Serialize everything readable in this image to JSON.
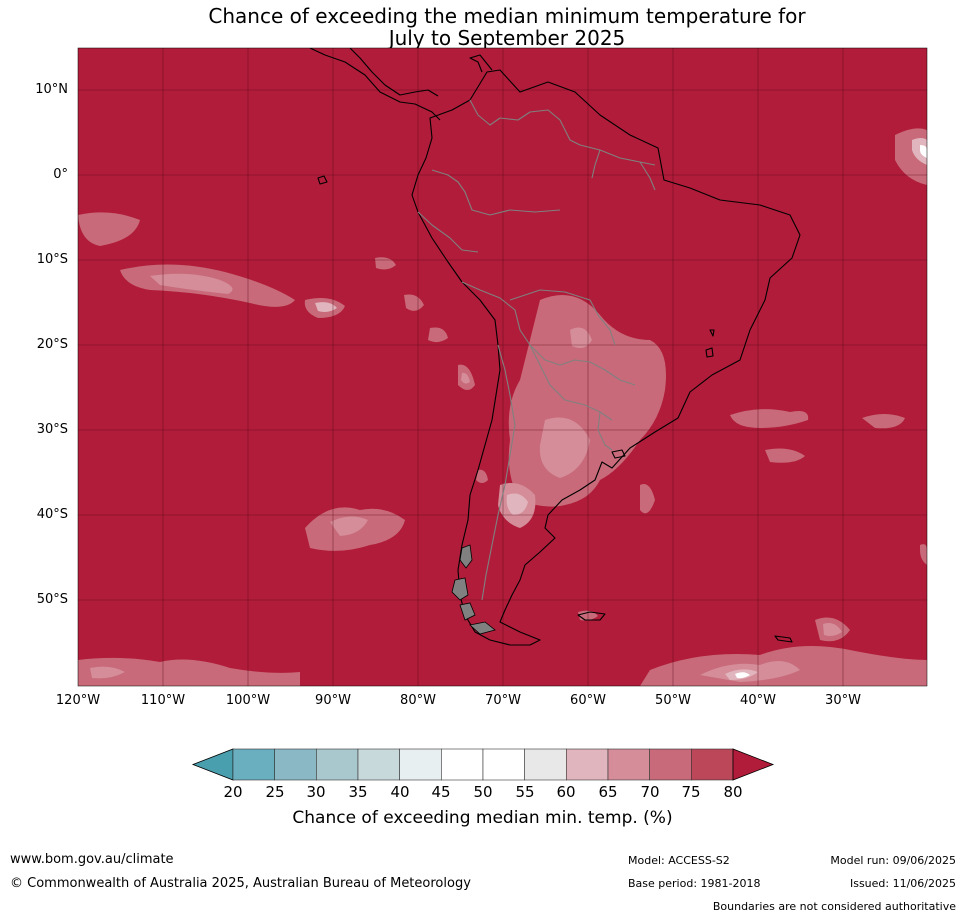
{
  "title_line1": "Chance of exceeding the median minimum temperature for",
  "title_line2": "July to September 2025",
  "map": {
    "lat_labels": [
      "10°N",
      "0°",
      "10°S",
      "20°S",
      "30°S",
      "40°S",
      "50°S"
    ],
    "lon_labels": [
      "120°W",
      "110°W",
      "100°W",
      "90°W",
      "80°W",
      "70°W",
      "60°W",
      "50°W",
      "40°W",
      "30°W"
    ],
    "background_color": "#b01c39"
  },
  "colorbar": {
    "ticks": [
      "20",
      "25",
      "30",
      "35",
      "40",
      "45",
      "50",
      "55",
      "60",
      "65",
      "70",
      "75",
      "80"
    ],
    "colors": [
      "#4a9fae",
      "#6aafbf",
      "#8ab9c5",
      "#a9c8ce",
      "#c8d9dc",
      "#e8eff1",
      "#ffffff",
      "#ffffff",
      "#e8e8e8",
      "#e0b5bd",
      "#d48d99",
      "#c86a79",
      "#bc4759",
      "#b01c39"
    ],
    "label": "Chance of exceeding median min. temp. (%)"
  },
  "footer": {
    "website": "www.bom.gov.au/climate",
    "copyright": "© Commonwealth of Australia 2025, Australian Bureau of Meteorology",
    "model": "Model: ACCESS-S2",
    "base_period": "Base period: 1981-2018",
    "model_run": "Model run: 09/06/2025",
    "issued": "Issued: 11/06/2025",
    "disclaimer": "Boundaries are not considered authoritative"
  }
}
